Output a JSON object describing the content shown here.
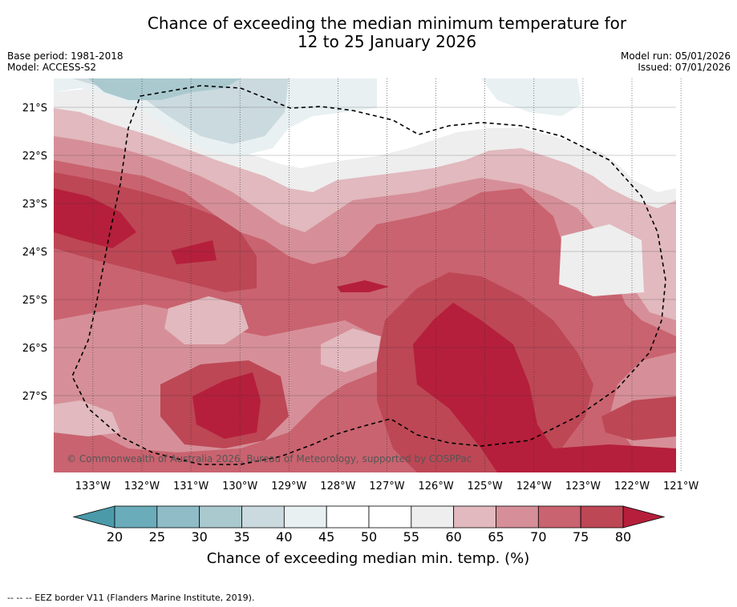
{
  "title": {
    "line1": "Chance of exceeding the median minimum temperature for",
    "line2": "12 to 25 January 2026"
  },
  "meta_left": {
    "base_period": "Base period: 1981-2018",
    "model": "Model: ACCESS-S2"
  },
  "meta_right": {
    "model_run": "Model run: 05/01/2026",
    "issued": "Issued: 07/01/2026"
  },
  "map": {
    "lat_labels": [
      "21°S",
      "22°S",
      "23°S",
      "24°S",
      "25°S",
      "26°S",
      "27°S"
    ],
    "lat_values": [
      21,
      22,
      23,
      24,
      25,
      26,
      27
    ],
    "lon_labels": [
      "133°W",
      "132°W",
      "131°W",
      "130°W",
      "129°W",
      "128°W",
      "127°W",
      "126°W",
      "125°W",
      "124°W",
      "123°W",
      "122°W",
      "121°W"
    ],
    "lon_values": [
      133,
      132,
      131,
      130,
      129,
      128,
      127,
      126,
      125,
      124,
      123,
      122,
      121
    ],
    "extent": {
      "lon_west": 133.8,
      "lon_east": 121.1,
      "lat_north": 20.4,
      "lat_south": 28.6
    },
    "copyright": "© Commonwealth of Australia 2026, Bureau of Meteorology, supported by COSPPac"
  },
  "colorbar": {
    "label": "Chance of exceeding median min. temp. (%)",
    "ticks": [
      "20",
      "25",
      "30",
      "35",
      "40",
      "45",
      "50",
      "55",
      "60",
      "65",
      "70",
      "75",
      "80"
    ],
    "colors": {
      "below20": "#4a9aaa",
      "c20_25": "#6aacba",
      "c25_30": "#8fbcc7",
      "c30_35": "#aac9cf",
      "c35_40": "#cbdadf",
      "c40_45": "#e8f0f2",
      "c45_50": "#ffffff",
      "c50_55": "#ffffff",
      "c55_60": "#eeeeee",
      "c60_65": "#e1b9be",
      "c65_70": "#d68f98",
      "c70_75": "#c9636f",
      "c75_80": "#bd4755",
      "above80": "#b51f3b"
    }
  },
  "footer": "--  --  -- EEZ border V11 (Flanders Marine Institute, 2019)."
}
